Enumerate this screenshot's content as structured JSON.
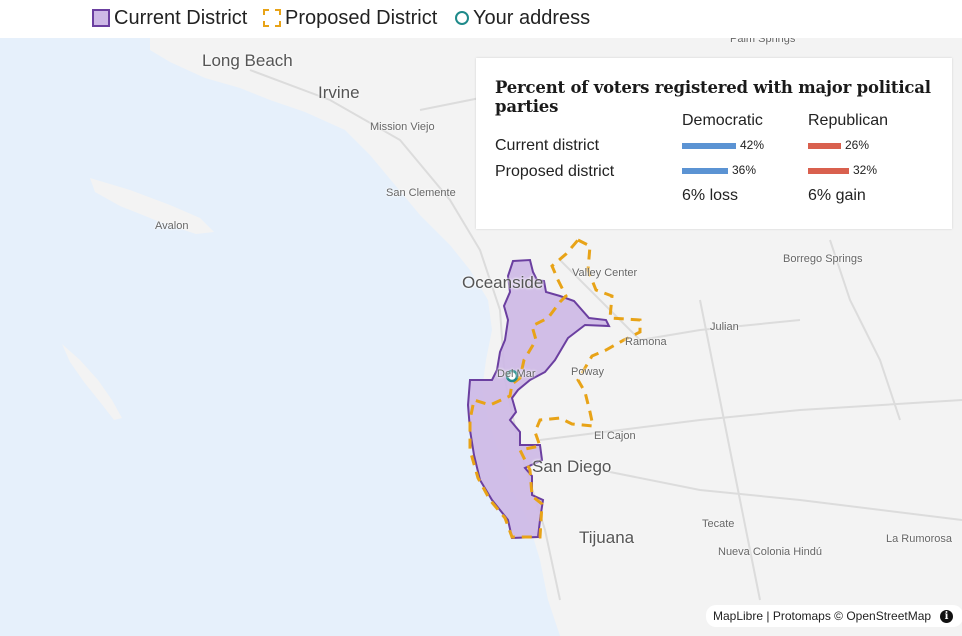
{
  "legend": {
    "current": "Current District",
    "proposed": "Proposed District",
    "address": "Your address"
  },
  "colors": {
    "current_fill": "#cdb8e6",
    "current_stroke": "#6b3fa0",
    "proposed_stroke": "#e8a317",
    "address": "#1f8a8a",
    "democratic": "#5b93d3",
    "republican": "#d9604e",
    "water": "#e6f0fb",
    "land": "#f3f3f3"
  },
  "places": {
    "palm_springs": "Palm Springs",
    "long_beach": "Long Beach",
    "irvine": "Irvine",
    "mission_viejo": "Mission Viejo",
    "san_clemente": "San Clemente",
    "avalon": "Avalon",
    "oceanside": "Oceanside",
    "valley_center": "Valley Center",
    "borrego_springs": "Borrego Springs",
    "julian": "Julian",
    "ramona": "Ramona",
    "del_mar": "Del Mar",
    "poway": "Poway",
    "el_cajon": "El Cajon",
    "san_diego": "San Diego",
    "tecate": "Tecate",
    "tijuana": "Tijuana",
    "nueva_colonia": "Nueva Colonia Hindú",
    "la_rumorosa": "La Rumorosa"
  },
  "card": {
    "title": "Percent of voters registered with major political parties",
    "col_dem": "Democratic",
    "col_rep": "Republican",
    "rows": [
      {
        "label": "Current district",
        "dem": 42,
        "dem_label": "42%",
        "rep": 26,
        "rep_label": "26%"
      },
      {
        "label": "Proposed district",
        "dem": 36,
        "dem_label": "36%",
        "rep": 32,
        "rep_label": "32%"
      }
    ],
    "dem_summary": "6% loss",
    "rep_summary": "6% gain"
  },
  "attribution": {
    "text": "MapLibre | Protomaps © OpenStreetMap",
    "info": "i"
  }
}
